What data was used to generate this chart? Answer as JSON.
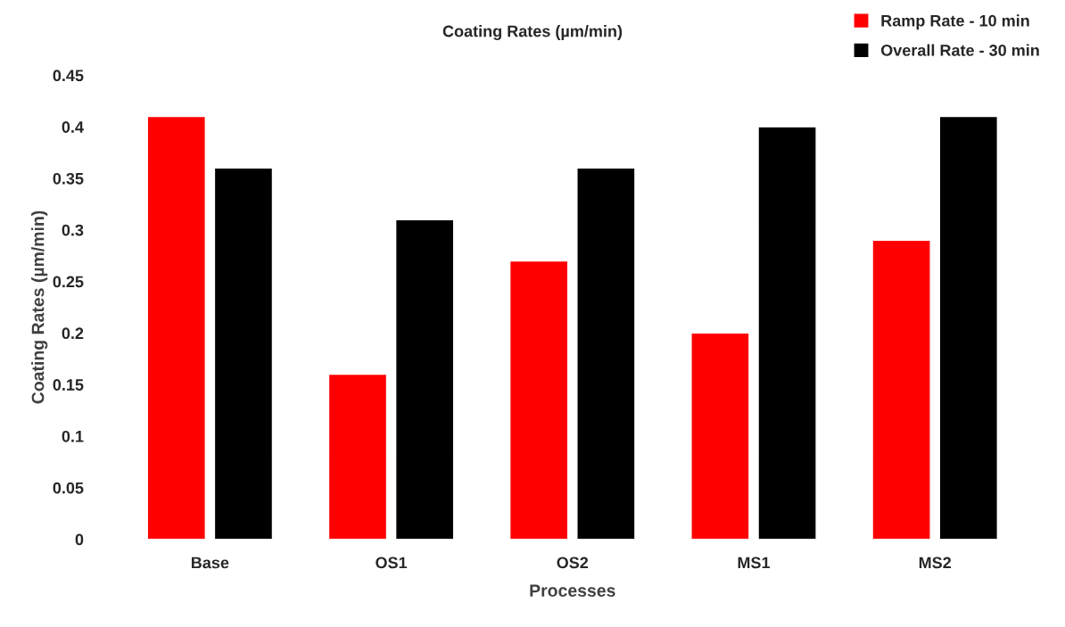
{
  "chart_data": {
    "type": "bar",
    "title": "Coating Rates (µm/min)",
    "xlabel": "Processes",
    "ylabel": "Coating Rates (µm/min)",
    "categories": [
      "Base",
      "OS1",
      "OS2",
      "MS1",
      "MS2"
    ],
    "series": [
      {
        "name": "Ramp Rate - 10 min",
        "color": "#ff0000",
        "values": [
          0.41,
          0.16,
          0.27,
          0.2,
          0.29
        ]
      },
      {
        "name": "Overall Rate - 30 min",
        "color": "#000000",
        "values": [
          0.36,
          0.31,
          0.36,
          0.4,
          0.41
        ]
      }
    ],
    "ylim": [
      0,
      0.45
    ],
    "yticks": [
      0,
      0.05,
      0.1,
      0.15,
      0.2,
      0.25,
      0.3,
      0.35,
      0.4,
      0.45
    ],
    "grid": false,
    "legend": "top right"
  }
}
